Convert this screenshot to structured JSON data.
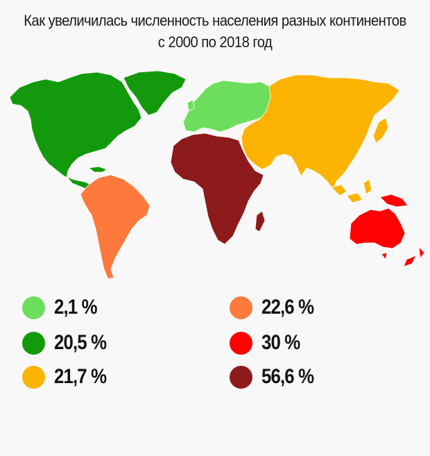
{
  "title": {
    "line1": "Как увеличилась численность населения разных континентов",
    "line2": "с 2000 по 2018 год"
  },
  "regions": [
    {
      "name": "europe",
      "color": "#6ddd5d"
    },
    {
      "name": "north-america",
      "color": "#139a0c"
    },
    {
      "name": "asia",
      "color": "#fdb302"
    },
    {
      "name": "south-america",
      "color": "#fd7a3c"
    },
    {
      "name": "oceania",
      "color": "#fd0200"
    },
    {
      "name": "africa",
      "color": "#8d1b1c"
    }
  ],
  "legend": [
    {
      "label": "2,1 %",
      "color": "#6ddd5d",
      "region": "europe"
    },
    {
      "label": "20,5 %",
      "color": "#139a0c",
      "region": "north-america"
    },
    {
      "label": "21,7 %",
      "color": "#fdb302",
      "region": "asia"
    },
    {
      "label": "22,6 %",
      "color": "#fd7a3c",
      "region": "south-america"
    },
    {
      "label": "30 %",
      "color": "#fd0200",
      "region": "oceania"
    },
    {
      "label": "56,6 %",
      "color": "#8d1b1c",
      "region": "africa"
    }
  ]
}
